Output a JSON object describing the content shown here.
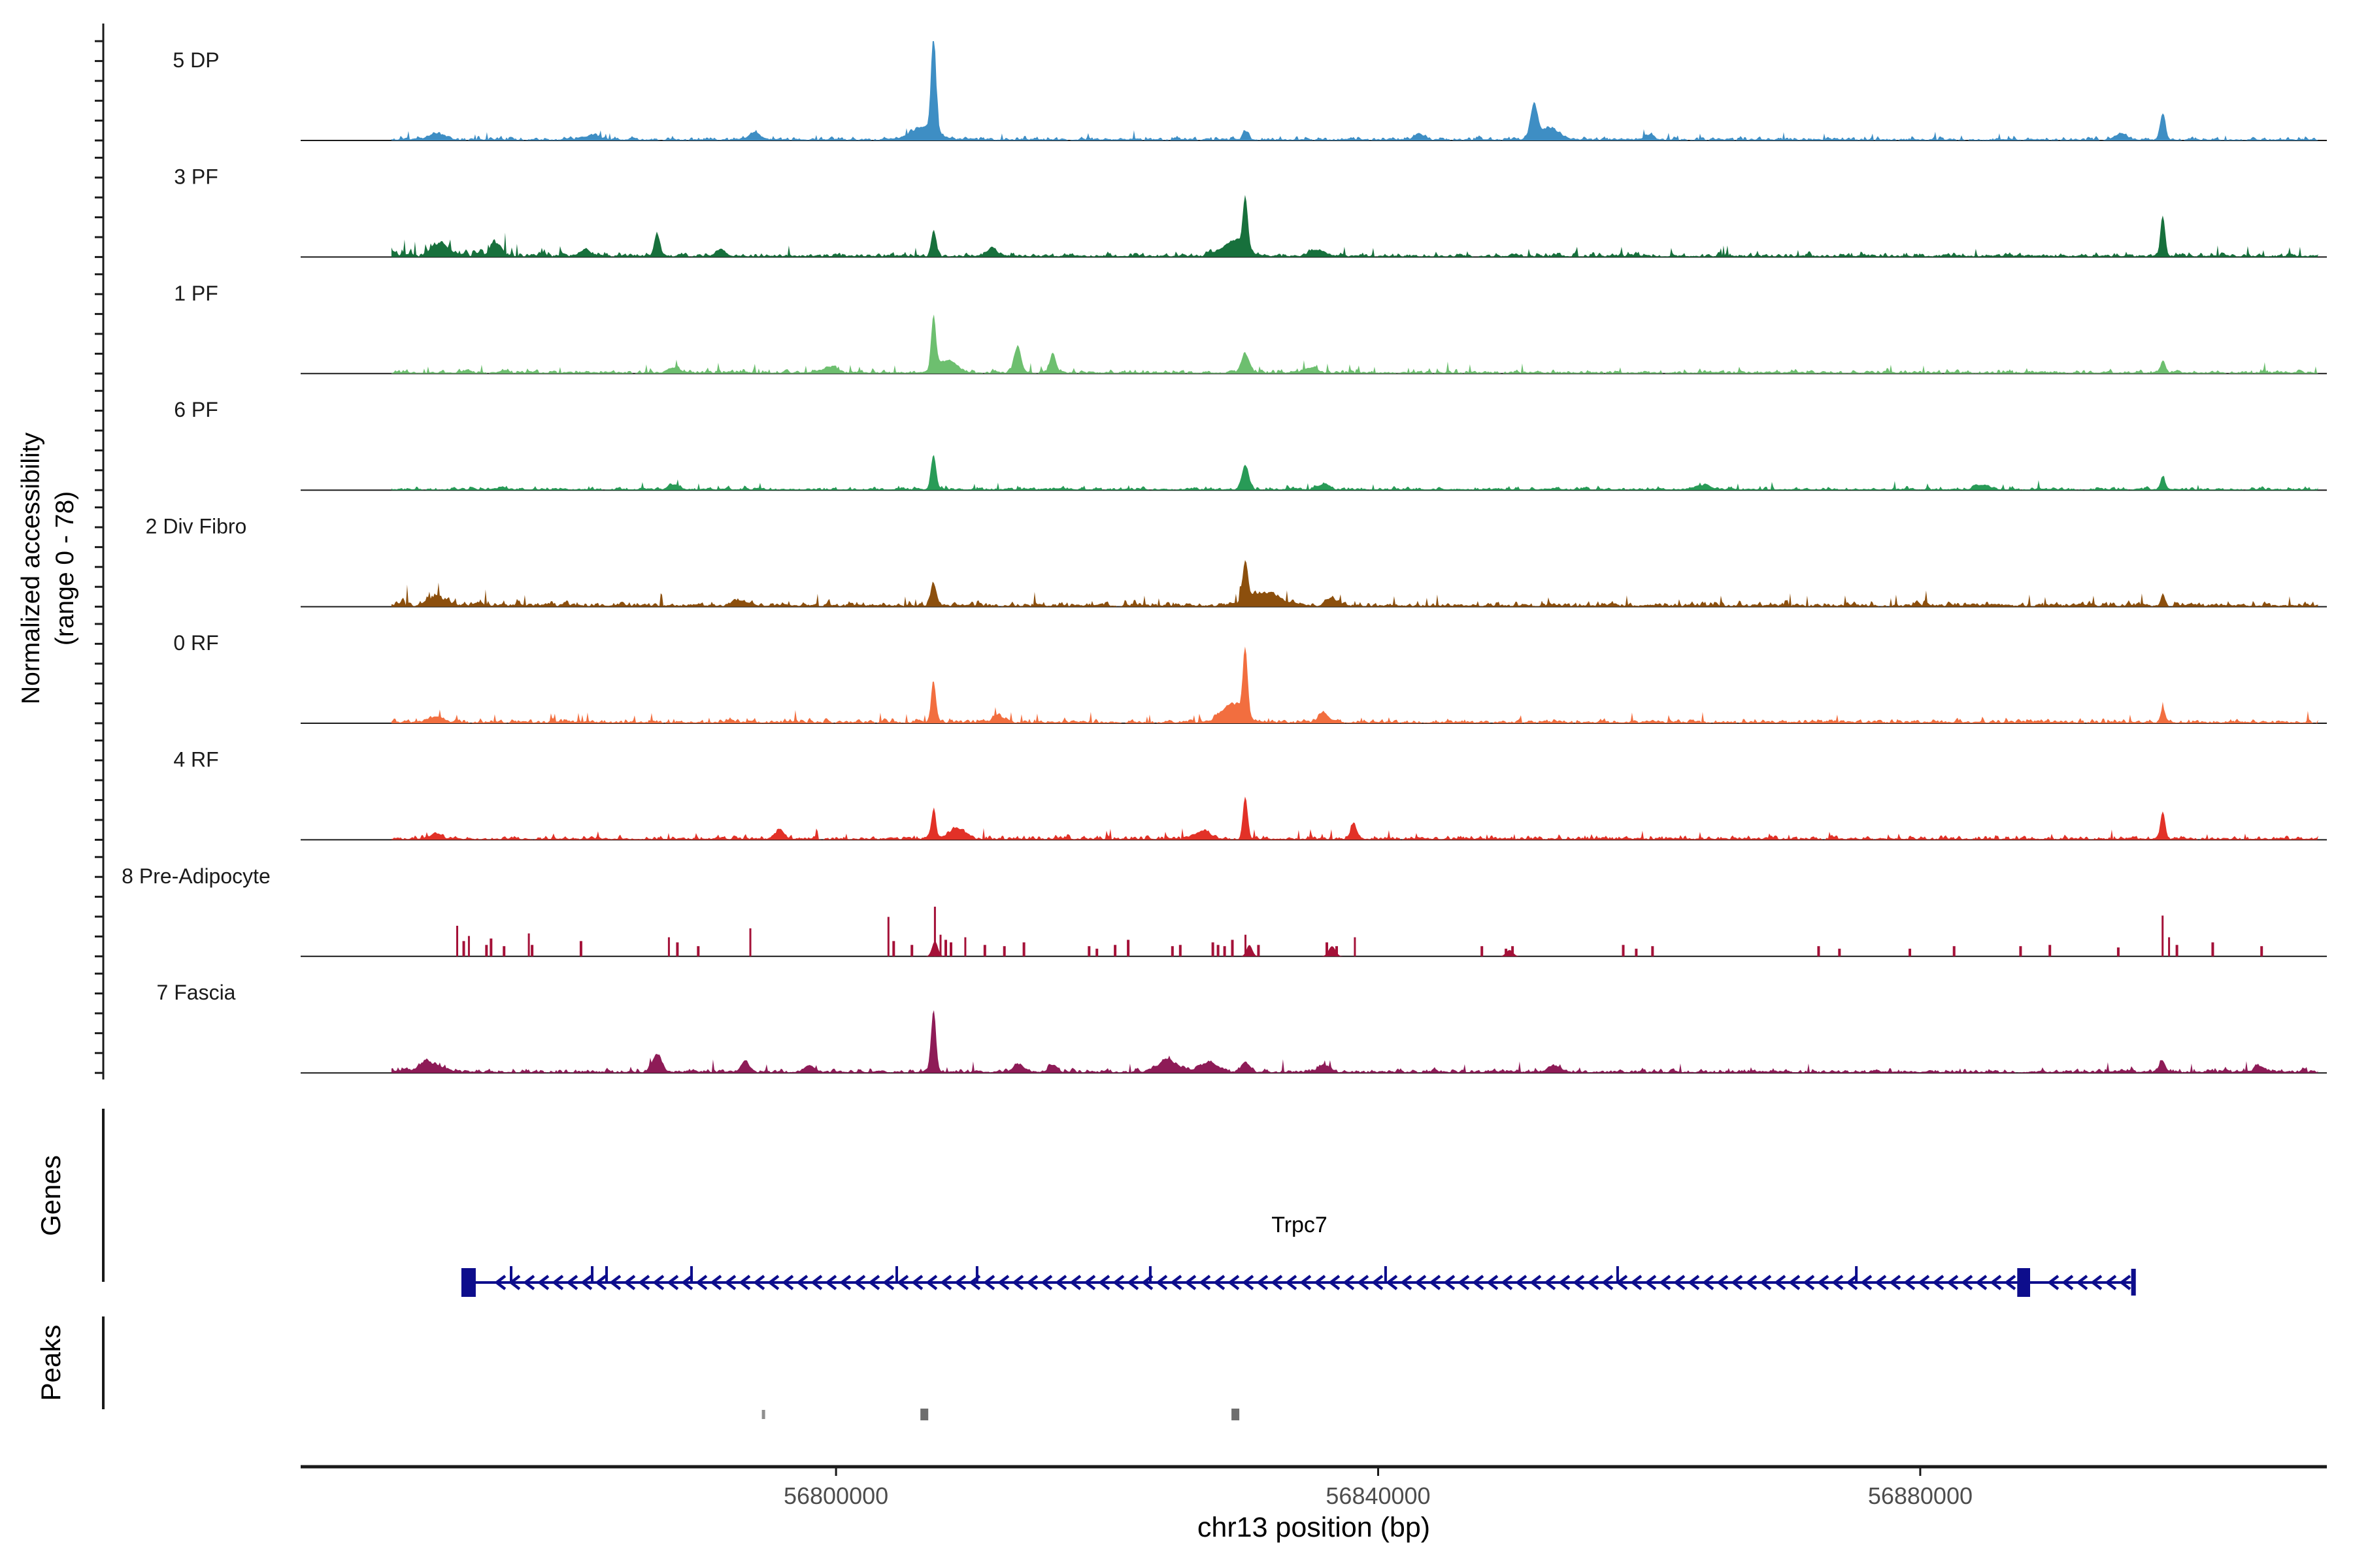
{
  "figure": {
    "background": "#ffffff"
  },
  "chart_data": {
    "type": "area",
    "title": "",
    "x_axis": {
      "title": "chr13 position (bp)",
      "tick_values": [
        56800000,
        56840000,
        56880000
      ],
      "tick_labels": [
        "56800000",
        "56840000",
        "56880000"
      ],
      "range": [
        56760500,
        56910000
      ]
    },
    "y_axis": {
      "label_line1": "Normalized accessibility",
      "label_line2": "(range 0 - 78)",
      "range": [
        0,
        78
      ],
      "ticks_per_track": 6
    },
    "region": {
      "chrom": "chr13",
      "start": 56760500,
      "end": 56910000,
      "data_start": 56767200,
      "data_end": 56909300
    },
    "tracks": [
      {
        "label": "5 DP",
        "color": "#3e8ec4",
        "noise_amp": 2.6,
        "peaks": [
          [
            56807200,
            78,
            420
          ],
          [
            56806500,
            10,
            2200
          ],
          [
            56830200,
            7,
            500
          ],
          [
            56851500,
            26,
            600
          ],
          [
            56852600,
            9,
            1800
          ],
          [
            56897900,
            21,
            450
          ],
          [
            56894800,
            5,
            900
          ],
          [
            56770500,
            5,
            1400
          ],
          [
            56794000,
            6,
            900
          ],
          [
            56782000,
            4,
            1200
          ],
          [
            56843000,
            5,
            800
          ],
          [
            56860000,
            4,
            900
          ]
        ]
      },
      {
        "label": "3 PF",
        "color": "#17703c",
        "noise_amp": 3.0,
        "boosts": [
          [
            56762000,
            56779000,
            2.3
          ]
        ],
        "peaks": [
          [
            56830200,
            40,
            420
          ],
          [
            56829400,
            12,
            2000
          ],
          [
            56807200,
            21,
            420
          ],
          [
            56897900,
            32,
            400
          ],
          [
            56786800,
            17,
            500
          ],
          [
            56770800,
            10,
            1200
          ],
          [
            56774900,
            9,
            900
          ],
          [
            56811500,
            7,
            800
          ],
          [
            56791500,
            6,
            700
          ],
          [
            56835500,
            5,
            1200
          ],
          [
            56781500,
            6,
            800
          ]
        ]
      },
      {
        "label": "1 PF",
        "color": "#6dbf6f",
        "noise_amp": 2.8,
        "peaks": [
          [
            56807200,
            43,
            420
          ],
          [
            56808300,
            10,
            1500
          ],
          [
            56813400,
            20,
            600
          ],
          [
            56816000,
            16,
            500
          ],
          [
            56830200,
            15,
            700
          ],
          [
            56897900,
            10,
            400
          ],
          [
            56799500,
            5,
            1000
          ],
          [
            56835000,
            4,
            1200
          ],
          [
            56788000,
            4,
            900
          ]
        ]
      },
      {
        "label": "6 PF",
        "color": "#289b57",
        "noise_amp": 2.4,
        "peaks": [
          [
            56807200,
            27,
            450
          ],
          [
            56830200,
            19,
            600
          ],
          [
            56897900,
            10,
            400
          ],
          [
            56788000,
            4,
            900
          ],
          [
            56884500,
            4,
            1200
          ],
          [
            56864000,
            3,
            1500
          ],
          [
            56836000,
            4,
            900
          ]
        ]
      },
      {
        "label": "2 Div Fibro",
        "color": "#8c4f0d",
        "noise_amp": 3.6,
        "boosts": [
          [
            56762000,
            56781000,
            1.5
          ]
        ],
        "peaks": [
          [
            56830200,
            31,
            450
          ],
          [
            56831600,
            10,
            2600
          ],
          [
            56807200,
            17,
            500
          ],
          [
            56897900,
            9,
            400
          ],
          [
            56770500,
            6,
            1500
          ],
          [
            56836500,
            6,
            1000
          ],
          [
            56793000,
            4,
            1200
          ]
        ]
      },
      {
        "label": "0 RF",
        "color": "#f26e3f",
        "noise_amp": 3.0,
        "peaks": [
          [
            56830200,
            52,
            420
          ],
          [
            56829200,
            14,
            1800
          ],
          [
            56807200,
            30,
            420
          ],
          [
            56897900,
            11,
            400
          ],
          [
            56836000,
            7,
            900
          ],
          [
            56770500,
            4,
            1200
          ],
          [
            56812000,
            4,
            1000
          ]
        ]
      },
      {
        "label": "4 RF",
        "color": "#e23127",
        "noise_amp": 3.0,
        "peaks": [
          [
            56830200,
            33,
            420
          ],
          [
            56807200,
            22,
            420
          ],
          [
            56838200,
            12,
            500
          ],
          [
            56897900,
            21,
            420
          ],
          [
            56808900,
            8,
            1400
          ],
          [
            56795800,
            6,
            900
          ],
          [
            56827000,
            6,
            1500
          ],
          [
            56770500,
            4,
            1000
          ]
        ]
      },
      {
        "label": "8 Pre-Adipocyte",
        "color": "#a41138",
        "style": "spikes",
        "spikes": [
          [
            56772050,
            24
          ],
          [
            56772530,
            12
          ],
          [
            56772915,
            16
          ],
          [
            56774213,
            9
          ],
          [
            56774549,
            14
          ],
          [
            56775510,
            8
          ],
          [
            56777337,
            18
          ],
          [
            56777577,
            9
          ],
          [
            56781182,
            12
          ],
          [
            56787671,
            15
          ],
          [
            56788296,
            11
          ],
          [
            56789834,
            8
          ],
          [
            56793680,
            22
          ],
          [
            56803870,
            31
          ],
          [
            56804254,
            12
          ],
          [
            56805600,
            9
          ],
          [
            56807300,
            39
          ],
          [
            56807714,
            17
          ],
          [
            56808100,
            13
          ],
          [
            56808483,
            11
          ],
          [
            56809541,
            15
          ],
          [
            56810983,
            9
          ],
          [
            56812425,
            8
          ],
          [
            56813867,
            11
          ],
          [
            56818673,
            8
          ],
          [
            56819250,
            6
          ],
          [
            56820595,
            9
          ],
          [
            56821557,
            13
          ],
          [
            56824825,
            8
          ],
          [
            56825402,
            9
          ],
          [
            56827805,
            11
          ],
          [
            56828189,
            9
          ],
          [
            56828670,
            8
          ],
          [
            56829247,
            13
          ],
          [
            56830208,
            17
          ],
          [
            56831169,
            9
          ],
          [
            56836216,
            11
          ],
          [
            56836937,
            8
          ],
          [
            56838282,
            15
          ],
          [
            56847655,
            8
          ],
          [
            56849433,
            6
          ],
          [
            56849914,
            8
          ],
          [
            56858084,
            9
          ],
          [
            56859045,
            6
          ],
          [
            56860247,
            8
          ],
          [
            56872502,
            8
          ],
          [
            56874040,
            6
          ],
          [
            56879231,
            6
          ],
          [
            56882499,
            8
          ],
          [
            56887401,
            8
          ],
          [
            56889564,
            9
          ],
          [
            56894611,
            7
          ],
          [
            56897879,
            32
          ],
          [
            56898360,
            15
          ],
          [
            56898937,
            9
          ],
          [
            56901580,
            11
          ],
          [
            56905185,
            8
          ]
        ],
        "mounds": [
          [
            56830500,
            9,
            500
          ],
          [
            56836600,
            8,
            600
          ],
          [
            56849700,
            5,
            600
          ],
          [
            56807300,
            12,
            500
          ]
        ]
      },
      {
        "label": "7 Fascia",
        "color": "#8e1b57",
        "noise_amp": 3.2,
        "boosts": [
          [
            56762000,
            56772000,
            1.4
          ]
        ],
        "peaks": [
          [
            56807200,
            48,
            420
          ],
          [
            56786800,
            14,
            800
          ],
          [
            56793300,
            9,
            700
          ],
          [
            56798000,
            5,
            900
          ],
          [
            56824500,
            8,
            2000
          ],
          [
            56827500,
            7,
            1500
          ],
          [
            56830200,
            8,
            700
          ],
          [
            56836000,
            5,
            1000
          ],
          [
            56853000,
            4,
            1200
          ],
          [
            56897900,
            9,
            500
          ],
          [
            56905000,
            5,
            800
          ],
          [
            56770000,
            7,
            1800
          ],
          [
            56813500,
            6,
            900
          ],
          [
            56816000,
            5,
            700
          ]
        ]
      }
    ],
    "gene_track": {
      "section_label": "Genes",
      "gene": {
        "name": "Trpc7",
        "strand": "-",
        "start": 56772650,
        "end": 56895730,
        "thick_exons": [
          {
            "center": 56772890,
            "width_bp": 1060
          },
          {
            "center": 56887630,
            "width_bp": 950
          }
        ],
        "end_bar": {
          "center": 56895730,
          "width_bp": 340
        },
        "exon_ticks": [
          56776030,
          56782010,
          56783070,
          56789340,
          56804480,
          56810410,
          56823190,
          56840550,
          56857670,
          56875280
        ]
      }
    },
    "peaks_track": {
      "section_label": "Peaks",
      "intervals": [
        {
          "start": 56794530,
          "end": 56794770,
          "shade": "light"
        },
        {
          "start": 56806230,
          "end": 56806810,
          "shade": "dark"
        },
        {
          "start": 56829180,
          "end": 56829760,
          "shade": "dark"
        }
      ]
    }
  },
  "colors": {
    "axis": "#1a1a1a",
    "baseline": "#1a1a1a",
    "tick_label": "#4d4d4d",
    "axis_title": "#000000",
    "track_label": "#1a1a1a",
    "section_label": "#000000",
    "gene": "#0d0d8c",
    "gene_label": "#000000",
    "peak_box_dark": "#6e6e6e",
    "peak_box_light": "#8f8f8f"
  }
}
